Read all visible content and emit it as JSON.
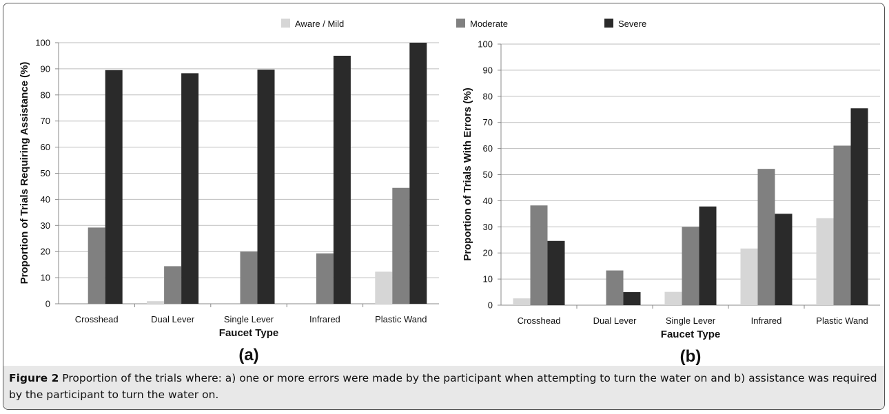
{
  "legend": [
    {
      "label": "Aware / Mild",
      "color": "#d6d6d6"
    },
    {
      "label": "Moderate",
      "color": "#808080"
    },
    {
      "label": "Severe",
      "color": "#2a2a2a"
    }
  ],
  "chart_data": [
    {
      "type": "bar",
      "panel_label": "(a)",
      "xlabel": "Faucet Type",
      "ylabel": "Proportion of Trials Requiring Assistance (%)",
      "ylim": [
        0,
        100
      ],
      "ytick_step": 10,
      "grid": true,
      "categories": [
        "Crosshead",
        "Dual Lever",
        "Single Lever",
        "Infrared",
        "Plastic Wand"
      ],
      "series": [
        {
          "name": "Aware / Mild",
          "values": [
            0,
            1,
            0,
            0,
            12.3
          ]
        },
        {
          "name": "Moderate",
          "values": [
            29.2,
            14.4,
            20,
            19.3,
            44.4
          ]
        },
        {
          "name": "Severe",
          "values": [
            89.5,
            88.3,
            89.7,
            95,
            100
          ]
        }
      ]
    },
    {
      "type": "bar",
      "panel_label": "(b)",
      "xlabel": "Faucet Type",
      "ylabel": "Proportion of Trials With Errors  (%)",
      "ylim": [
        0,
        100
      ],
      "ytick_step": 10,
      "grid": true,
      "categories": [
        "Crosshead",
        "Dual Lever",
        "Single Lever",
        "Infrared",
        "Plastic Wand"
      ],
      "series": [
        {
          "name": "Aware / Mild",
          "values": [
            2.6,
            0,
            5.1,
            21.7,
            33.3
          ]
        },
        {
          "name": "Moderate",
          "values": [
            38.2,
            13.3,
            30,
            52.2,
            61.1
          ]
        },
        {
          "name": "Severe",
          "values": [
            24.6,
            5,
            37.8,
            35,
            75.4
          ]
        }
      ]
    }
  ],
  "caption": {
    "label": "Figure 2",
    "text": " Proportion of the trials where: a) one or more errors were made by the participant when attempting to turn the water on and b) assistance was required by the participant to turn the water on."
  }
}
